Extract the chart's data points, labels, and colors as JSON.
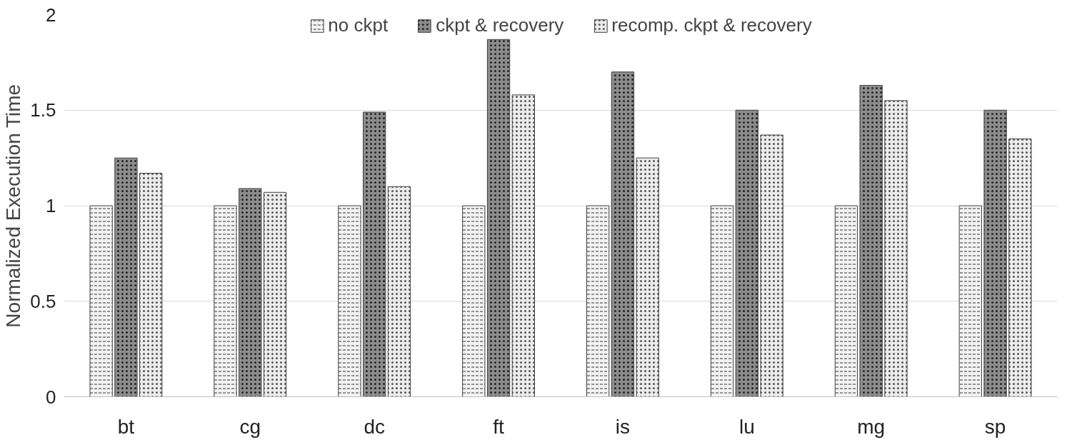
{
  "chart_data": {
    "type": "bar",
    "ylabel": "Normalized Execution Time",
    "categories": [
      "bt",
      "cg",
      "dc",
      "ft",
      "is",
      "lu",
      "mg",
      "sp"
    ],
    "series": [
      {
        "name": "no ckpt",
        "color": "#f2f2f2",
        "values": [
          1,
          1,
          1,
          1,
          1,
          1,
          1,
          1
        ]
      },
      {
        "name": "ckpt & recovery",
        "color": "#8c8c8c",
        "values": [
          1.25,
          1.09,
          1.49,
          1.87,
          1.7,
          1.5,
          1.63,
          1.5
        ]
      },
      {
        "name": "recomp. ckpt & recovery",
        "color": "#ececec",
        "values": [
          1.17,
          1.07,
          1.1,
          1.58,
          1.25,
          1.37,
          1.55,
          1.35
        ]
      }
    ],
    "ylim": [
      0,
      2
    ],
    "yticks": [
      0,
      0.5,
      1,
      1.5,
      2
    ],
    "grid": "y",
    "legend": "top"
  }
}
